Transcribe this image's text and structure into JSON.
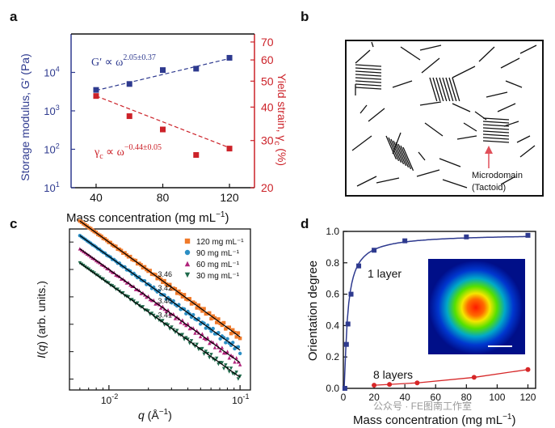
{
  "watermark": "公众号 · FE图南工作室",
  "panels": {
    "a": {
      "letter": "a",
      "xlabel": "Mass concentration (mg mL",
      "xlabel_sup": "−1",
      "xlabel_end": ")",
      "ylabel_left": "Storage modulus, G′ (Pa)",
      "ylabel_right": "Yield strain, γ",
      "ylabel_right_sub": "c",
      "ylabel_right_end": " (%)",
      "eq_top": "G′ ∝ ω",
      "eq_top_exp": "2.05±0.37",
      "eq_bottom": "γ",
      "eq_bottom_sub": "c",
      "eq_bottom_mid": " ∝ ω",
      "eq_bottom_exp": "−0.44±0.05"
    },
    "b": {
      "letter": "b",
      "annotation_line1": "Microdomain",
      "annotation_line2": "(Tactoid)"
    },
    "c": {
      "letter": "c",
      "xlabel_italic": "q",
      "xlabel_rest": " (Å",
      "xlabel_sup": "−1",
      "xlabel_end": ")",
      "ylabel_italic": "I",
      "ylabel_mid": "(",
      "ylabel_q": "q",
      "ylabel_rest": ") (arb. units.)"
    },
    "d": {
      "letter": "d",
      "xlabel": "Mass concentration (mg mL",
      "xlabel_sup": "−1",
      "xlabel_end": ")",
      "ylabel": "Orientation degree",
      "label_1layer": "1 layer",
      "label_8layers": "8 layers"
    }
  },
  "chart_data": [
    {
      "panel": "a",
      "type": "scatter",
      "x": [
        40,
        60,
        80,
        100,
        120
      ],
      "xticks": [
        40,
        80,
        120
      ],
      "xlim": [
        25,
        135
      ],
      "series": [
        {
          "axis": "left",
          "color": "#2e3a8f",
          "values": [
            3500,
            5000,
            11500,
            12500,
            24000
          ],
          "fit": [
            3400,
            23000
          ]
        },
        {
          "axis": "right",
          "color": "#cc2229",
          "values": [
            44,
            37,
            33,
            26.5,
            28
          ],
          "fit": [
            44,
            28.2
          ]
        }
      ],
      "left_axis": {
        "scale": "log",
        "ylim": [
          10,
          100000
        ],
        "ticks": [
          10,
          100,
          1000,
          10000
        ],
        "color": "#2e3a8f"
      },
      "right_axis": {
        "scale": "log",
        "ylim": [
          20,
          75
        ],
        "ticks": [
          20,
          30,
          40,
          50,
          60,
          70
        ],
        "color": "#cc2229"
      }
    },
    {
      "panel": "c",
      "type": "scatter",
      "xscale": "log",
      "yscale": "log",
      "xlim": [
        0.005,
        0.12
      ],
      "ylim": [
        4e-08,
        0.03
      ],
      "xticks": [
        0.01,
        0.1
      ],
      "legend_position": "top-right",
      "series": [
        {
          "name": "120 mg mL⁻¹",
          "color": "#f07a2a",
          "marker": "square",
          "slope_label": "3.46",
          "a": 0.01,
          "slope": 3.46
        },
        {
          "name": "90 mg mL⁻¹",
          "color": "#2b8ec4",
          "marker": "circle",
          "slope_label": "3.42",
          "a": 0.003,
          "slope": 3.42
        },
        {
          "name": "60 mg mL⁻¹",
          "color": "#b0237b",
          "marker": "triangle",
          "slope_label": "3.40",
          "a": 0.001,
          "slope": 3.4
        },
        {
          "name": "30 mg mL⁻¹",
          "color": "#1f6a4b",
          "marker": "triangle-down",
          "slope_label": "3.41",
          "a": 0.0003,
          "slope": 3.41
        }
      ]
    },
    {
      "panel": "d",
      "type": "line",
      "xlim": [
        0,
        125
      ],
      "ylim": [
        0,
        1.0
      ],
      "xticks": [
        0,
        20,
        40,
        60,
        80,
        100,
        120
      ],
      "yticks": [
        0.0,
        0.2,
        0.4,
        0.6,
        0.8,
        1.0
      ],
      "series": [
        {
          "name": "1 layer",
          "color": "#2e3a8f",
          "marker": "square",
          "x": [
            1,
            2,
            3,
            5,
            10,
            20,
            40,
            80,
            120
          ],
          "y": [
            0.0,
            0.28,
            0.41,
            0.6,
            0.78,
            0.88,
            0.94,
            0.965,
            0.975
          ]
        },
        {
          "name": "8 layers",
          "color": "#d62728",
          "marker": "circle",
          "x": [
            20,
            30,
            48,
            85,
            120
          ],
          "y": [
            0.02,
            0.025,
            0.035,
            0.07,
            0.12
          ]
        }
      ]
    }
  ]
}
